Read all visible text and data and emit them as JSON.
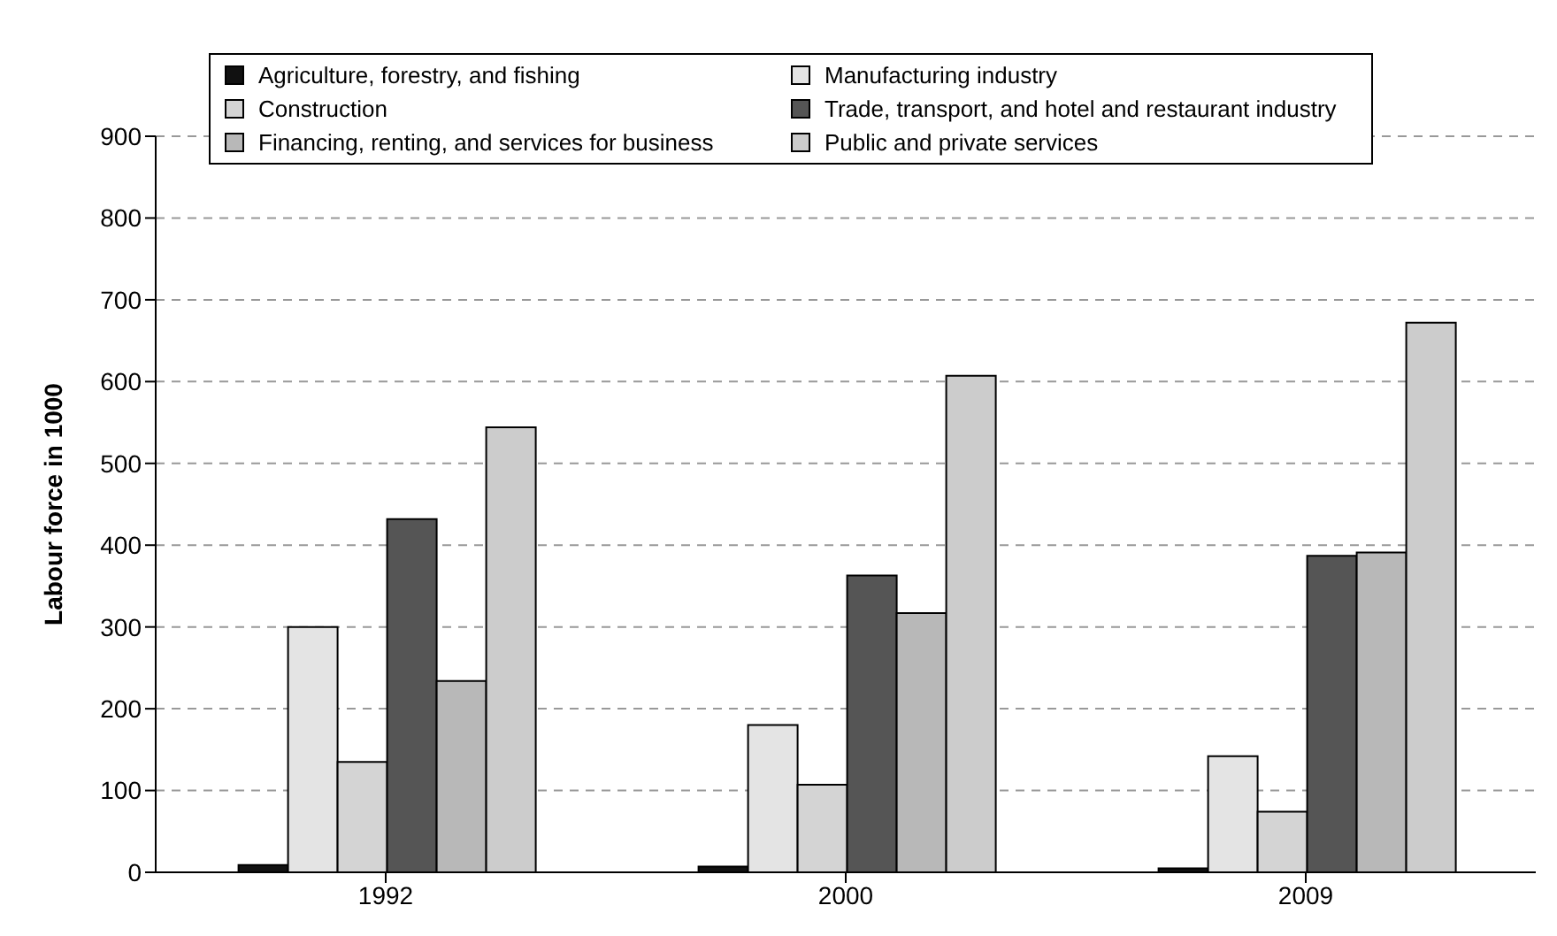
{
  "chart_data": {
    "type": "bar",
    "ylabel": "Labour force in 1000",
    "categories": [
      "1992",
      "2000",
      "2009"
    ],
    "series": [
      {
        "name": "Agriculture, forestry, and fishing",
        "color": "#111111",
        "values": [
          9,
          7,
          5
        ]
      },
      {
        "name": "Manufacturing industry",
        "color": "#e4e4e4",
        "values": [
          300,
          180,
          142
        ]
      },
      {
        "name": "Construction",
        "color": "#d4d4d4",
        "values": [
          135,
          107,
          74
        ]
      },
      {
        "name": "Trade, transport, and hotel and restaurant industry",
        "color": "#555555",
        "values": [
          432,
          363,
          387
        ]
      },
      {
        "name": "Financing, renting, and services for business",
        "color": "#b8b8b8",
        "values": [
          234,
          317,
          391
        ]
      },
      {
        "name": "Public and private services",
        "color": "#cccccc",
        "values": [
          544,
          607,
          672
        ]
      }
    ],
    "ylim": [
      0,
      900
    ],
    "yticks": [
      0,
      100,
      200,
      300,
      400,
      500,
      600,
      700,
      800,
      900
    ],
    "grid": "y",
    "legend": "top"
  }
}
